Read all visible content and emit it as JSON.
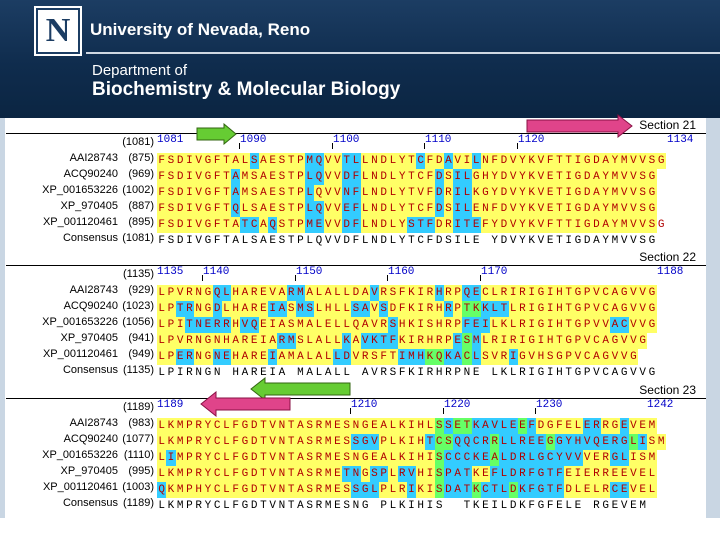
{
  "header": {
    "logo_letter": "N",
    "university": "University of Nevada, Reno",
    "department_line1": "Department of",
    "department_line2": "Biochemistry & Molecular Biology"
  },
  "colors": {
    "identical": "#ffff66",
    "similar": "#33ccff",
    "block": "#66ff66",
    "residue": "#b00000",
    "ruler": "#0000c8",
    "arrow_right": "#e0448a",
    "arrow_left": "#66cc33"
  },
  "sections": [
    {
      "title": "Section 21",
      "range_label": "(1081)",
      "ruler": {
        "start": 1081,
        "labels": [
          "1081",
          "1090",
          "1100",
          "1110",
          "1120",
          "1134"
        ]
      },
      "rows": [
        {
          "name": "AAI28743",
          "pos": "(875)",
          "seq": "FSDIVGFTALSAESTPMQVVTLLNDLYTCFDAVILNFDVYKVFTTIGDAYMVVSG",
          "bg": "yyyyyyyyyycyyyyyccyyccyyyyyycyycyycyyyyyyyyyyyyyyyyyyyy"
        },
        {
          "name": "ACQ90240",
          "pos": "(969)",
          "seq": "FSDIVGFTAMSAESTPLQVVDFLNDLYTCFDSILGHYDVYKVETIGDAYMVVSG",
          "bg": "yyyyyyyycyyyyyyyccyyccyyyyyyyycyccyyyyyyyyyyyyyyyyyyyy"
        },
        {
          "name": "XP_001653226",
          "pos": "(1002)",
          "seq": "FSDIVGFTAMSAESTPLQVVNFLNDLYTVFDRILKGYDVYKVETIGDAYMVVSG",
          "bg": "yyyyyyyycyyyyyyycyyyccyyyyyyyycyccyyyyyyyyyyyyyyyyyyyy"
        },
        {
          "name": "XP_970405",
          "pos": "(887)",
          "seq": "FSDIVGFTQLSAESTPLQVVEFLNDLYTCFDSILENFDVYKVETIGDAYMVVSG",
          "bg": "yyyyyyyycyyyyyyyccyyccyyyyyyyycyccyyyyyyyyyyyyyyyyyyyy"
        },
        {
          "name": "XP_001120461",
          "pos": "(895)",
          "seq": "FSDIVGFTATCAQSTPMEVVDFLNDLYSTFDRITEFYDVYKVFTTIGDAYMVVSG",
          "bg": "yyyyyyyyyccycyyyccyyccyyyyycccyycccyyyyyyyyyyyyyyyyyyy"
        }
      ],
      "consensus": {
        "name": "Consensus",
        "pos": "(1081)",
        "seq": "FSDIVGFTALSAESTPLQVVDFLNDLYTCFDSILE YDVYKVETIGDAYMVVSG"
      },
      "arrows": []
    },
    {
      "title": "Section 22",
      "range_label": "(1135)",
      "ruler": {
        "start": 1135,
        "labels": [
          "1135",
          "1140",
          "1150",
          "1160",
          "1170",
          "1188"
        ]
      },
      "rows": [
        {
          "name": "AAI28743",
          "pos": "(929)",
          "seq": "LPVRNGQLHAREVARMALALLDAVRSFKIRHRPQECLRIRIGIHTGPVCAGVVG",
          "bg": "yyyyyyccyyyyyyccyyyyyyycyyyyyycyyccyyyyyyyyyyyyyyyyyyy"
        },
        {
          "name": "ACQ90240",
          "pos": "(1023)",
          "seq": "LPTRNGDLHAREIASMSLHLLSAVSDFKIRHRPTKKLTLRIGIHTGPVCAGVVG",
          "bg": "yyccyycyyyyyccyccyyyyccycyyyyyycyggcccyyyyyyyyyyyyyyyy"
        },
        {
          "name": "XP_001653226",
          "pos": "(1056)",
          "seq": "LPITNERRHVQEIASMALELLQAVRSHKISHRPFEILKLRIGIHTGPVVACVVG",
          "bg": "yyycccccyccyyyyyyyyyyyyyycyyyyyyycccyyyyyyyyyyyyyccyyy"
        },
        {
          "name": "XP_970405",
          "pos": "(941)",
          "seq": "LPVRNGNHAREIARMSLALLKAVKTFKIRHRPESMLRIRIGIHTGPVCAGVVG",
          "bg": "yyyyyyyyyyyyyccyyyyycyccccyyyyyycgcyyyyyyyyyyyyyyyyyy"
        },
        {
          "name": "XP_001120461",
          "pos": "(949)",
          "seq": "LPERNGNEHAREIAMALALLDVRSFTIMHKQKACLSVRIGVHSGPVCAGVVG",
          "bg": "yyccyyccyyyycyyyyyyccyyyyycccggccgcyyycyyyyyyyyyyyyy"
        }
      ],
      "consensus": {
        "name": "Consensus",
        "pos": "(1135)",
        "seq": "LPIRNGN HAREIA MALALL AVRSFKIRHRPNE LKLRIGIHTGPVCAGVVG"
      },
      "arrows": []
    },
    {
      "title": "Section 23",
      "range_label": "(1189)",
      "ruler": {
        "start": 1189,
        "labels": [
          "1189",
          "1210",
          "1220",
          "1230",
          "1242"
        ]
      },
      "rows": [
        {
          "name": "AAI28743",
          "pos": "(983)",
          "seq": "LKMPRYCLFGDTVNTASRMESNGEALKIHLSSETKAVLEEFDGFELERRGEVEM",
          "bg": "yyyyyyyyyyyyyyyyyyyyyyyyyyyyyygcggcccccgcyyyyyccyycyyy"
        },
        {
          "name": "ACQ90240",
          "pos": "(1077)",
          "seq": "LKMPRYCLFGDTVNTASRMESSGVPLKIHTCSQQCRRLLREEGGYHVQERGLISM",
          "bg": "yyyyyyyyyyyyyyyyyyyyycccyyyyycggccccgcccccgccccccccgcyy"
        },
        {
          "name": "XP_001653226",
          "pos": "(1110)",
          "seq": "LIMPRYCLFGDTVNTASRMESNGEALKIHISCCCKEALDRLGCYVVVERGLISM",
          "bg": "ycyyyyyyyyyyyyyyyyyyyyyyyyyyyygcccccgcccccccccyyyccyyy"
        },
        {
          "name": "XP_970405",
          "pos": "(995)",
          "seq": "LKMPRYCLFGDTVNTASRMETNGSPLRVHISPATKEFLDRFGTFEIERREEVEL",
          "bg": "yyyyyyyyyyyyyyyyyyyyccyccyccyygcccyyccccccccyyyyyyyyyy"
        },
        {
          "name": "XP_001120461",
          "pos": "(1003)",
          "seq": "QKMPHYCLFGDTVNTASRMESSGLPLRIKISDATKCTLDKFGTFDLELRCEVEL",
          "bg": "cyyyyyyyyyyyyyyyyyyyycccyyycyygcccgcccgcccccyyyyyccyyy"
        }
      ],
      "consensus": {
        "name": "Consensus",
        "pos": "(1189)",
        "seq": "LKMPRYCLFGDTVNTASRMESNG PLKIHIS  TKEILDKFGFELE RGEVEM"
      },
      "arrows": []
    }
  ]
}
